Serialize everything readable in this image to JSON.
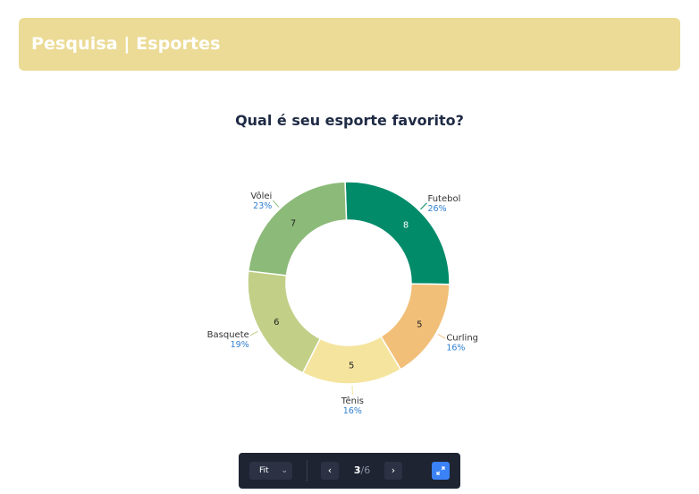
{
  "header": {
    "title": "Pesquisa | Esportes",
    "color": "#ebdb96"
  },
  "chart_data": {
    "type": "pie",
    "variant": "donut",
    "title": "Qual é seu esporte favorito?",
    "categories": [
      "Futebol",
      "Curling",
      "Tênis",
      "Basquete",
      "Vôlei"
    ],
    "values": [
      8,
      5,
      5,
      6,
      7
    ],
    "percent_labels": [
      "26%",
      "16%",
      "16%",
      "19%",
      "23%"
    ],
    "colors": [
      "#028b69",
      "#f1bf78",
      "#f4e49d",
      "#c1cf87",
      "#8cbb79"
    ],
    "legend": "none"
  },
  "toolbar": {
    "fit_label": "Fit",
    "page_current": "3",
    "page_separator": "/",
    "page_total": "6",
    "prev_icon": "chevron-left-icon",
    "next_icon": "chevron-right-icon",
    "expand_icon": "expand-icon"
  }
}
